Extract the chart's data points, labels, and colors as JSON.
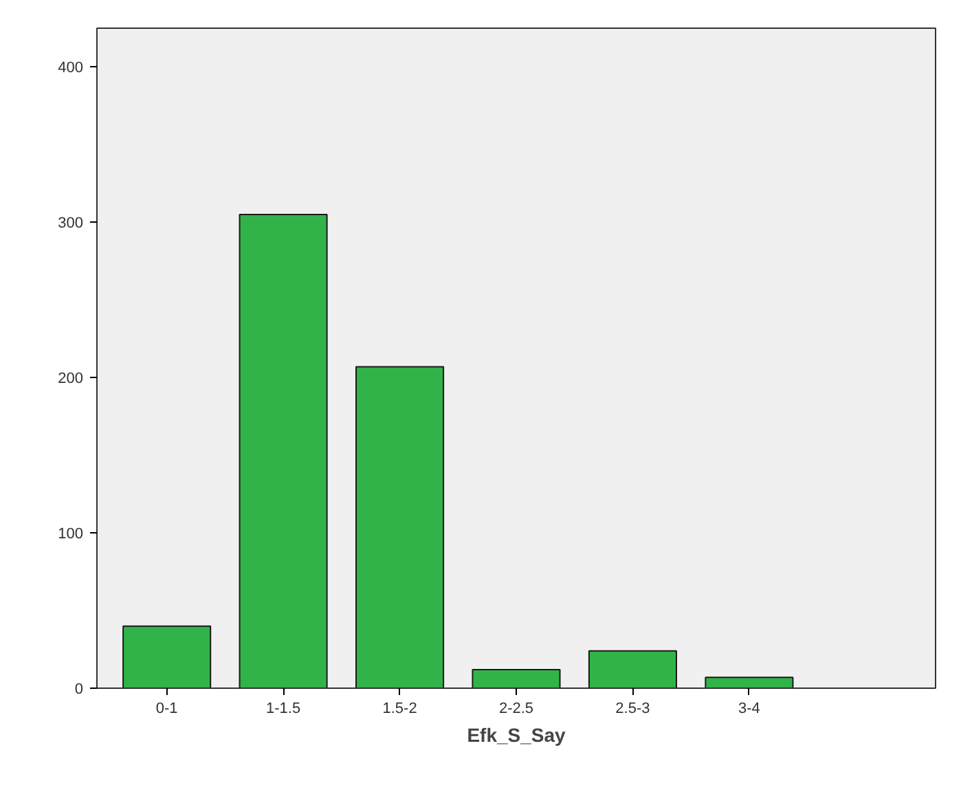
{
  "chart_data": {
    "type": "bar",
    "xlabel": "Efk_S_Say",
    "categories": [
      "0-1",
      "1-1.5",
      "1.5-2",
      "2-2.5",
      "2.5-3",
      "3-4"
    ],
    "values": [
      40,
      305,
      207,
      12,
      24,
      7
    ],
    "color": "#32b34a",
    "ylim": [
      0,
      425
    ],
    "yticks": [
      0,
      100,
      200,
      300,
      400
    ],
    "grid": false
  }
}
